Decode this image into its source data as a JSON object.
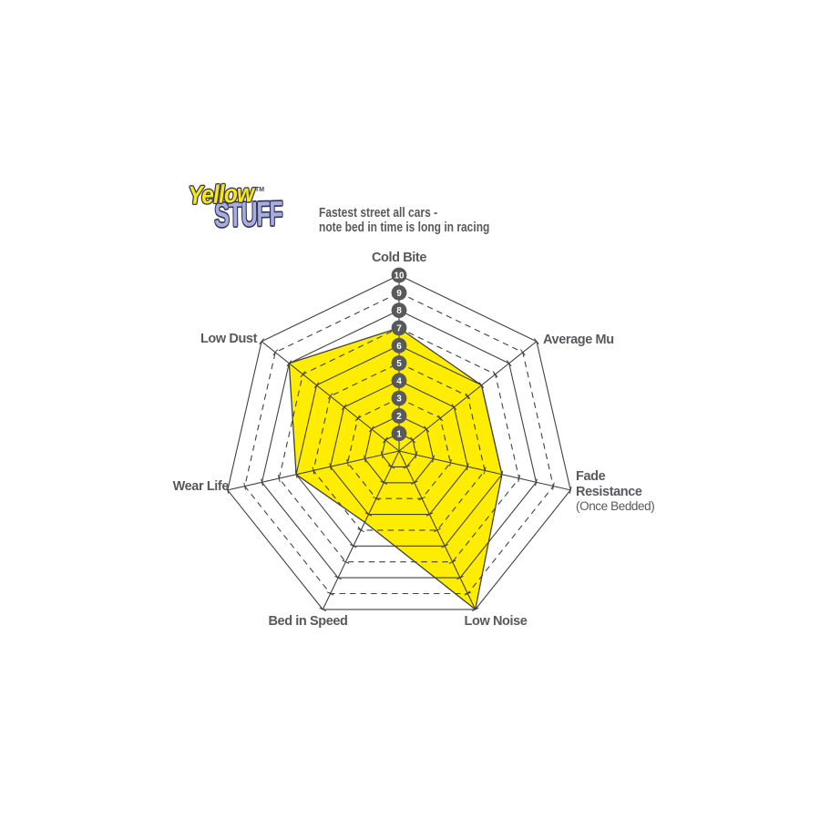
{
  "logo": {
    "word1": "Yellow",
    "word2": "STUFF",
    "trademark": "TM",
    "word1_color": "#f9e814",
    "word2_color": "#a7aedb"
  },
  "subtitle": {
    "line1": "Fastest street all cars -",
    "line2": "note bed in time is long in racing",
    "color": "#58595b"
  },
  "chart_data": {
    "type": "radar",
    "axis_range": [
      0,
      10
    ],
    "rings": 10,
    "solid_rings": [
      1,
      2,
      4,
      6,
      8,
      10
    ],
    "dashed_rings": [
      3,
      5,
      7,
      9
    ],
    "scale_labels": [
      "1",
      "2",
      "3",
      "4",
      "5",
      "6",
      "7",
      "8",
      "9",
      "10"
    ],
    "categories": [
      "Cold Bite",
      "Average Mu",
      "Fade Resistance",
      "Low Noise",
      "Bed in Speed",
      "Wear Life",
      "Low Dust"
    ],
    "axes": [
      {
        "label": "Cold Bite",
        "value": 7
      },
      {
        "label": "Average Mu",
        "value": 6
      },
      {
        "label": "Fade Resistance",
        "sublabel": "(Once Bedded)",
        "value": 6
      },
      {
        "label": "Low Noise",
        "value": 10
      },
      {
        "label": "Bed in Speed",
        "value": 4.5
      },
      {
        "label": "Wear Life",
        "value": 6
      },
      {
        "label": "Low Dust",
        "value": 8
      }
    ],
    "fill_color": "#ffed00",
    "line_color": "#414042",
    "marker_fill": "#58595b",
    "marker_text_color": "#ffffff",
    "label_color": "#58595b",
    "legend": "none",
    "grid": "heptagonal web, alternating solid/dashed rings"
  }
}
